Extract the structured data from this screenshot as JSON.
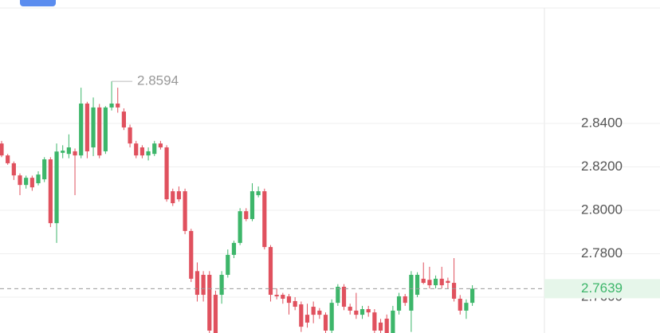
{
  "chart_data": {
    "type": "candlestick",
    "ylim": [
      2.7435,
      2.8969
    ],
    "yticks": [
      {
        "value": 2.84,
        "label": "2.8400"
      },
      {
        "value": 2.82,
        "label": "2.8200"
      },
      {
        "value": 2.8,
        "label": "2.8000"
      },
      {
        "value": 2.78,
        "label": "2.7800"
      },
      {
        "value": 2.76,
        "label": "2.7600"
      }
    ],
    "grid": true,
    "up_color": "#3db66a",
    "down_color": "#e0515e",
    "max_annotation": 2.8594,
    "last_price": 2.7639,
    "open": [
      2.8308,
      2.8253,
      2.8217,
      2.8161,
      2.8117,
      2.815,
      2.8125,
      2.8143,
      2.8235,
      2.7941,
      2.8265,
      2.826,
      2.8272,
      2.8253,
      2.8492,
      2.829,
      2.8474,
      2.8272,
      2.8474,
      2.8492,
      2.8455,
      2.8382,
      2.8308,
      2.829,
      2.8253,
      2.826,
      2.8308,
      2.829,
      2.8088,
      2.8088,
      2.8088,
      2.7905,
      2.772,
      2.7703,
      2.7703,
      2.7611,
      2.7611,
      2.7703,
      2.7795,
      2.785,
      2.7996,
      2.796,
      2.807,
      2.8088,
      2.7831,
      2.7611,
      2.7611,
      2.7604,
      2.7582,
      2.7567,
      2.7519,
      2.7556,
      2.7538,
      2.7519,
      2.7446,
      2.7574,
      2.7648,
      2.7556,
      2.7538,
      2.7519,
      2.7545,
      2.753,
      2.7483,
      2.7501,
      2.7435,
      2.7538,
      2.7604,
      2.7538,
      2.7611,
      2.7685,
      2.768,
      2.7655,
      2.7685,
      2.7675,
      2.7666,
      2.7593,
      2.7538,
      2.7574
    ],
    "high": [
      2.832,
      2.826,
      2.8225,
      2.817,
      2.816,
      2.816,
      2.818,
      2.8245,
      2.8245,
      2.8308,
      2.83,
      2.835,
      2.8285,
      2.8565,
      2.85,
      2.852,
      2.849,
      2.848,
      2.8594,
      2.8565,
      2.847,
      2.8395,
      2.832,
      2.83,
      2.829,
      2.832,
      2.832,
      2.83,
      2.81,
      2.811,
      2.81,
      2.7915,
      2.776,
      2.772,
      2.772,
      2.763,
      2.772,
      2.782,
      2.786,
      2.801,
      2.801,
      2.8125,
      2.811,
      2.81,
      2.784,
      2.764,
      2.762,
      2.7615,
      2.76,
      2.758,
      2.757,
      2.758,
      2.755,
      2.753,
      2.759,
      2.766,
      2.766,
      2.757,
      2.762,
      2.756,
      2.756,
      2.7545,
      2.75,
      2.752,
      2.756,
      2.762,
      2.7615,
      2.772,
      2.7715,
      2.776,
      2.774,
      2.77,
      2.774,
      2.769,
      2.778,
      2.761,
      2.759,
      2.7655
    ],
    "low": [
      2.8245,
      2.821,
      2.814,
      2.807,
      2.81,
      2.809,
      2.8115,
      2.813,
      2.7923,
      2.785,
      2.824,
      2.824,
      2.807,
      2.824,
      2.824,
      2.825,
      2.824,
      2.826,
      2.846,
      2.845,
      2.837,
      2.829,
      2.824,
      2.824,
      2.823,
      2.825,
      2.828,
      2.804,
      2.802,
      2.804,
      2.789,
      2.767,
      2.758,
      2.758,
      2.742,
      2.74,
      2.757,
      2.769,
      2.778,
      2.784,
      2.795,
      2.795,
      2.806,
      2.782,
      2.758,
      2.759,
      2.757,
      2.752,
      2.754,
      2.744,
      2.746,
      2.748,
      2.75,
      2.743,
      2.743,
      2.756,
      2.754,
      2.752,
      2.75,
      2.75,
      2.751,
      2.743,
      2.743,
      2.742,
      2.742,
      2.752,
      2.756,
      2.744,
      2.76,
      2.766,
      2.764,
      2.764,
      2.764,
      2.764,
      2.758,
      2.752,
      2.75,
      2.756
    ],
    "close": [
      2.8253,
      2.8217,
      2.8161,
      2.8117,
      2.815,
      2.8106,
      2.8165,
      2.8235,
      2.7941,
      2.8271,
      2.8275,
      2.829,
      2.8253,
      2.8492,
      2.8272,
      2.8474,
      2.8253,
      2.8474,
      2.8492,
      2.8474,
      2.8382,
      2.8308,
      2.8253,
      2.8253,
      2.8272,
      2.8308,
      2.829,
      2.8051,
      2.8033,
      2.8051,
      2.7905,
      2.7685,
      2.7611,
      2.7611,
      2.7446,
      2.7435,
      2.7703,
      2.7795,
      2.785,
      2.7996,
      2.796,
      2.8088,
      2.8088,
      2.7831,
      2.7611,
      2.7604,
      2.7593,
      2.7574,
      2.7556,
      2.7464,
      2.7483,
      2.7519,
      2.7519,
      2.7446,
      2.7574,
      2.7648,
      2.7556,
      2.7538,
      2.7519,
      2.7545,
      2.753,
      2.7446,
      2.7446,
      2.7435,
      2.7538,
      2.7604,
      2.7574,
      2.7703,
      2.7703,
      2.7666,
      2.7655,
      2.7685,
      2.7655,
      2.7666,
      2.7593,
      2.7538,
      2.7574,
      2.7639
    ]
  }
}
